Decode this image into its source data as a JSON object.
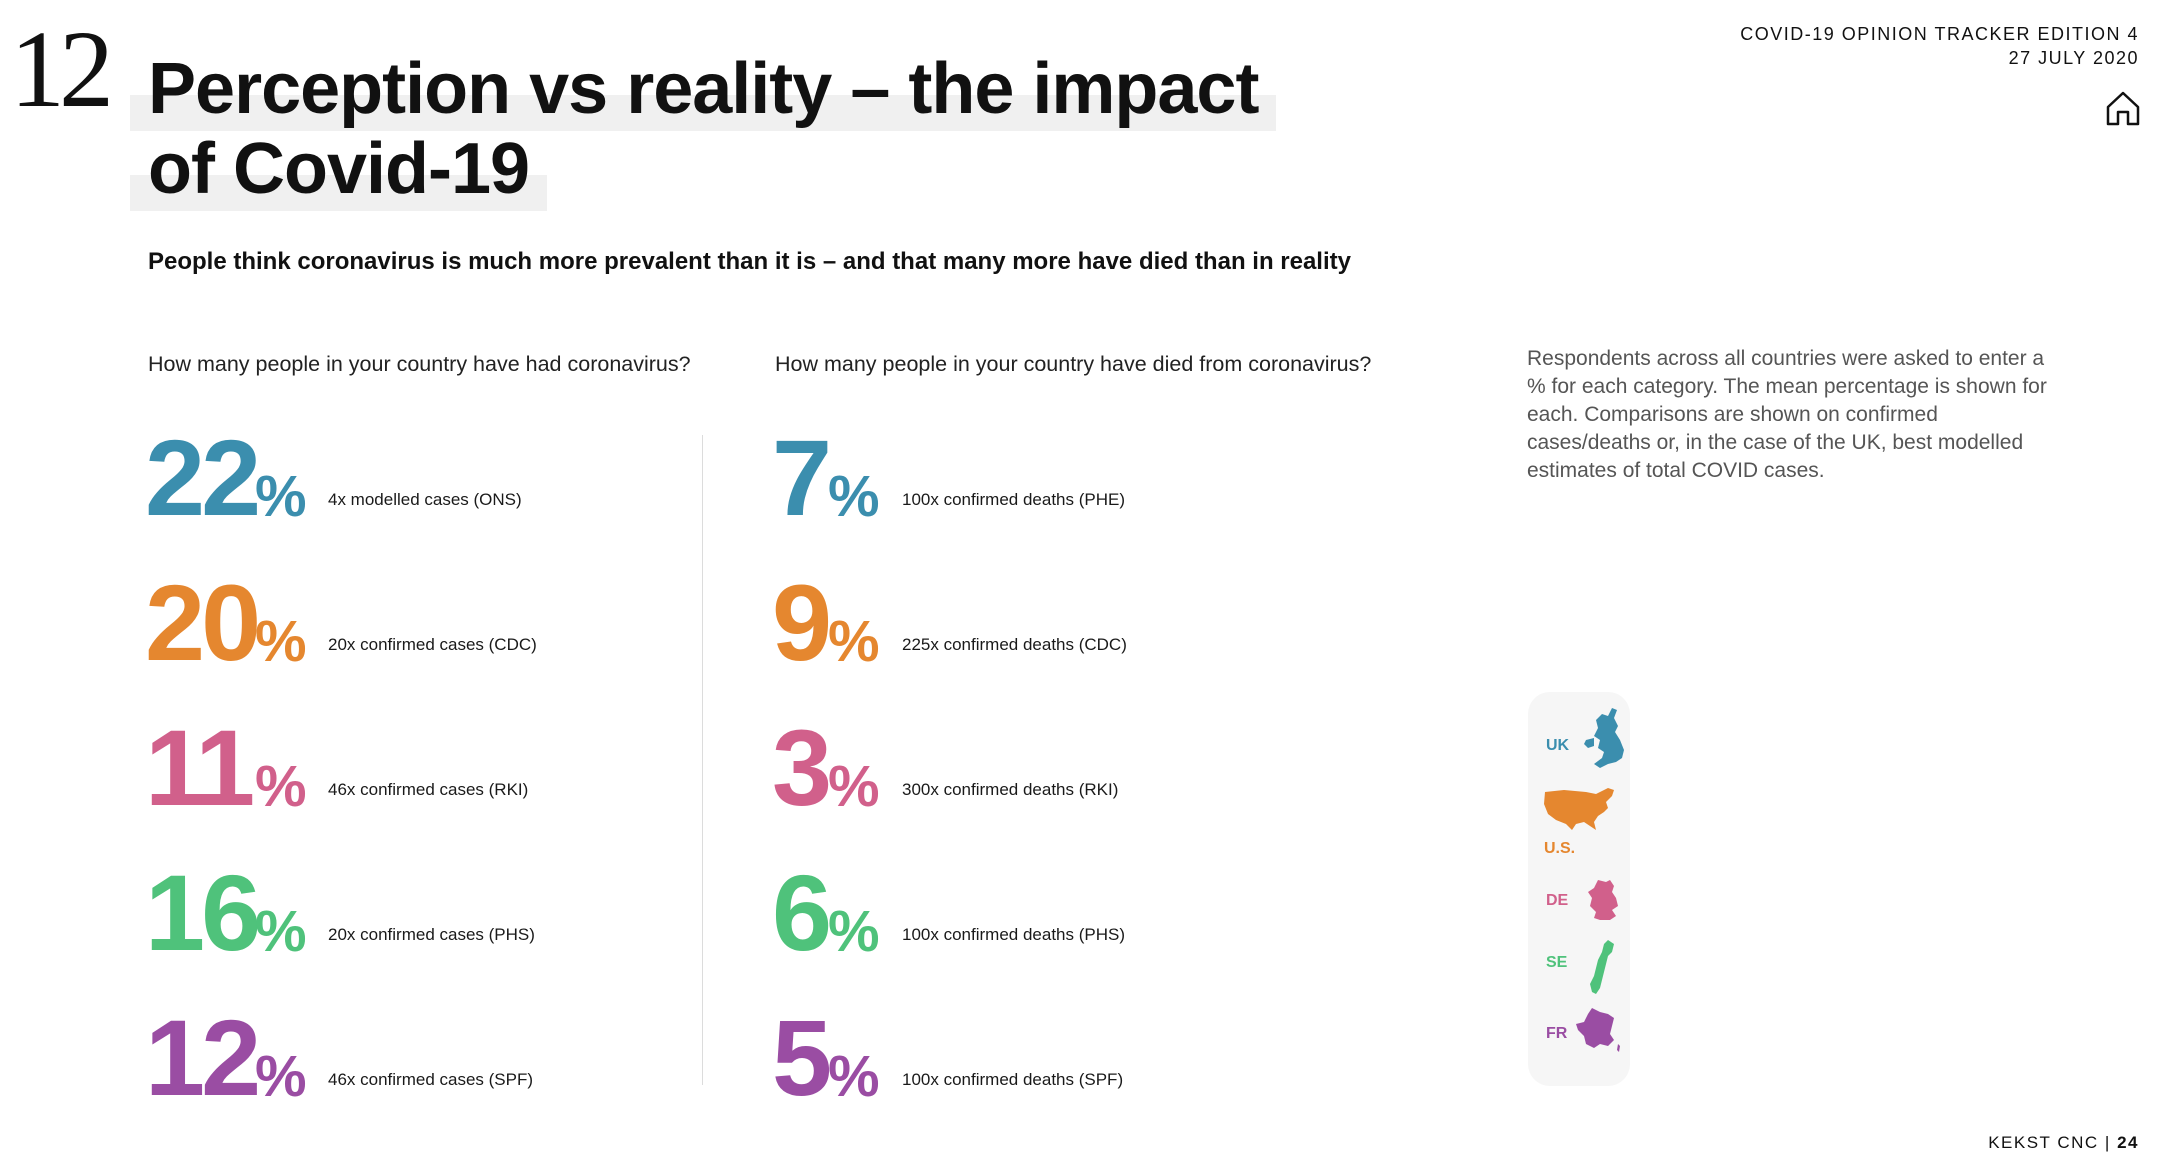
{
  "section_number": "12",
  "title": {
    "line1": "Perception vs reality – the impact",
    "line2": "of Covid-19"
  },
  "tracker": {
    "name": "COVID-19 OPINION TRACKER EDITION 4",
    "date": "27 JULY 2020"
  },
  "subtitle": "People think coronavirus is much more prevalent than it is – and that many more have died than in reality",
  "questions": {
    "cases": "How many people in your country have had coronavirus?",
    "deaths": "How many people in your country have died from coronavirus?"
  },
  "colors": {
    "uk": "#3b8eae",
    "us": "#e5872f",
    "de": "#d1608b",
    "se": "#4fc27b",
    "fr": "#9a4da3"
  },
  "cases": [
    {
      "value": "22",
      "unit": "%",
      "note": "4x modelled cases (ONS)"
    },
    {
      "value": "20",
      "unit": "%",
      "note": "20x confirmed cases (CDC)"
    },
    {
      "value": "11",
      "unit": "%",
      "note": "46x confirmed cases (RKI)"
    },
    {
      "value": "16",
      "unit": "%",
      "note": "20x confirmed cases (PHS)"
    },
    {
      "value": "12",
      "unit": "%",
      "note": "46x confirmed cases (SPF)"
    }
  ],
  "deaths": [
    {
      "value": "7",
      "unit": "%",
      "note": "100x confirmed deaths (PHE)"
    },
    {
      "value": "9",
      "unit": "%",
      "note": "225x confirmed deaths (CDC)"
    },
    {
      "value": "3",
      "unit": "%",
      "note": "300x confirmed deaths (RKI)"
    },
    {
      "value": "6",
      "unit": "%",
      "note": "100x confirmed deaths (PHS)"
    },
    {
      "value": "5",
      "unit": "%",
      "note": "100x confirmed deaths (SPF)"
    }
  ],
  "side_note": "Respondents across all countries were asked to enter a % for each category. The mean percentage is shown for each. Comparisons are shown on confirmed cases/deaths or, in the case of the UK, best modelled estimates of total COVID cases.",
  "legend": [
    {
      "label": "UK",
      "icon": "uk-map-icon"
    },
    {
      "label": "U.S.",
      "icon": "us-map-icon"
    },
    {
      "label": "DE",
      "icon": "germany-map-icon"
    },
    {
      "label": "SE",
      "icon": "sweden-map-icon"
    },
    {
      "label": "FR",
      "icon": "france-map-icon"
    }
  ],
  "footer": {
    "brand": "KEKST CNC",
    "separator": "|",
    "page": "24"
  }
}
